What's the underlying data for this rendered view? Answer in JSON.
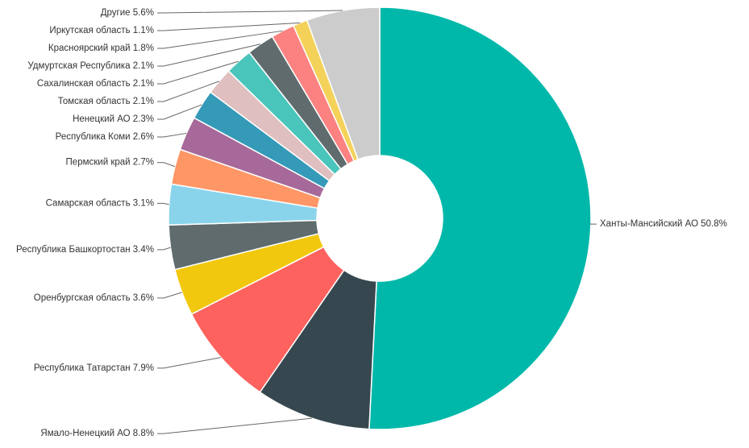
{
  "chart_data": {
    "type": "donut",
    "categories": [
      "Ханты-Мансийский АО",
      "Ямало-Ненецкий АО",
      "Республика Татарстан",
      "Оренбургская область",
      "Республика Башкортостан",
      "Самарская область",
      "Пермский край",
      "Республика Коми",
      "Ненецкий АО",
      "Томская область",
      "Сахалинская область",
      "Удмуртская Республика",
      "Красноярский край",
      "Иркутская область",
      "Другие"
    ],
    "values": [
      50.8,
      8.8,
      7.9,
      3.6,
      3.4,
      3.1,
      2.7,
      2.6,
      2.3,
      2.1,
      2.1,
      2.1,
      1.8,
      1.1,
      5.6
    ],
    "value_labels": [
      "50.8%",
      "8.8%",
      "7.9%",
      "3.6%",
      "3.4%",
      "3.1%",
      "2.7%",
      "2.6%",
      "2.3%",
      "2.1%",
      "2.1%",
      "2.1%",
      "1.8%",
      "1.1%",
      "5.6%"
    ],
    "colors": [
      "#00b8aa",
      "#37474f",
      "#fd625e",
      "#f2c80f",
      "#5f6b6d",
      "#8ad4eb",
      "#fe9666",
      "#a66999",
      "#3599b8",
      "#dfbfbf",
      "#4ac5bb",
      "#5f6b6d",
      "#fb8281",
      "#f4d25a",
      "#cccccc"
    ]
  }
}
